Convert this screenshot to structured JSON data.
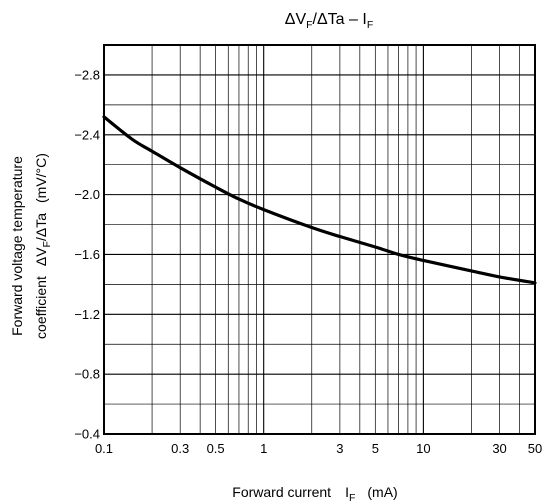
{
  "chart_data": {
    "type": "line",
    "title": {
      "main": "ΔV",
      "sub1": "F",
      "mid": "/ΔTa – I",
      "sub2": "F"
    },
    "xlabel": {
      "text": "Forward current",
      "sym": "I",
      "sym_sub": "F",
      "unit": "(mA)"
    },
    "ylabel": {
      "line1": "Forward voltage temperature",
      "line2_a": "coefficient",
      "line2_b": "ΔV",
      "line2_sub": "F",
      "line2_c": "/ΔTa",
      "line2_d": "(mV/°C)"
    },
    "x_scale": "log",
    "xlim": [
      0.1,
      50
    ],
    "ylim": [
      -0.4,
      -3.0
    ],
    "y_axis_direction": "values become more negative upward",
    "x_ticks": [
      0.1,
      0.3,
      0.5,
      1,
      3,
      5,
      10,
      30,
      50
    ],
    "x_tick_labels": [
      "0.1",
      "0.3",
      "0.5",
      "1",
      "3",
      "5",
      "10",
      "30",
      "50"
    ],
    "y_ticks": [
      -0.4,
      -0.8,
      -1.2,
      -1.6,
      -2.0,
      -2.4,
      -2.8
    ],
    "y_tick_labels": [
      "−0.4",
      "−0.8",
      "−1.2",
      "−1.6",
      "−2.0",
      "−2.4",
      "−2.8"
    ],
    "grid": true,
    "series": [
      {
        "x": [
          0.1,
          0.15,
          0.2,
          0.3,
          0.5,
          0.7,
          1,
          2,
          3,
          5,
          7,
          10,
          20,
          30,
          50
        ],
        "y": [
          -2.52,
          -2.37,
          -2.29,
          -2.18,
          -2.05,
          -1.97,
          -1.9,
          -1.78,
          -1.72,
          -1.65,
          -1.6,
          -1.56,
          -1.49,
          -1.45,
          -1.41
        ]
      }
    ]
  }
}
